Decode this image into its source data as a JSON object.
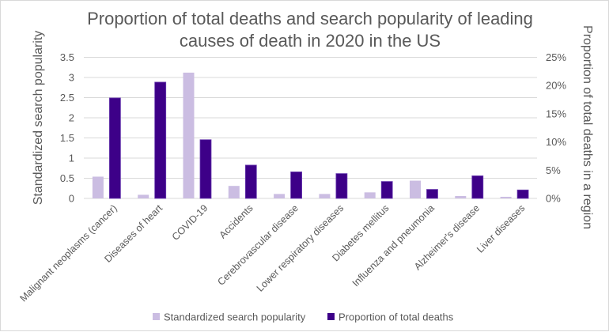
{
  "chart_data": {
    "type": "bar",
    "title": "Proportion of total deaths and search popularity of leading causes of death in 2020 in the US",
    "title_lines": [
      "Proportion of total deaths and search popularity of leading",
      "causes of death in 2020 in the US"
    ],
    "xlabel": "",
    "ylabel": "Standardized search popularity",
    "y2label": "Proportion of total deaths in a region",
    "categories": [
      "Malignant neoplasms (cancer)",
      "Diseases of heart",
      "COVID-19",
      "Accidents",
      "Cerebrovascular disease",
      "Lower respiratory diseases",
      "Diabetes mellitus",
      "Influenza and pneumonia",
      "Alzheimer's disease",
      "Liver diseases"
    ],
    "series": [
      {
        "name": "Standardized search popularity",
        "axis": "left",
        "color": "#CBBDE2",
        "values": [
          0.54,
          0.09,
          3.12,
          0.31,
          0.11,
          0.11,
          0.15,
          0.44,
          0.06,
          0.04
        ]
      },
      {
        "name": "Proportion of total deaths",
        "axis": "right",
        "color": "#3D0088",
        "unit": "%",
        "values": [
          17.8,
          20.6,
          10.4,
          5.9,
          4.7,
          4.4,
          3.0,
          1.6,
          4.0,
          1.5
        ]
      }
    ],
    "ylim": [
      0,
      3.5
    ],
    "y_ticks": [
      "0",
      "0.5",
      "1",
      "1.5",
      "2",
      "2.5",
      "3",
      "3.5"
    ],
    "y2lim": [
      0,
      25
    ],
    "y2_ticks": [
      "0%",
      "5%",
      "10%",
      "15%",
      "20%",
      "25%"
    ],
    "grid": true,
    "legend_position": "bottom"
  }
}
